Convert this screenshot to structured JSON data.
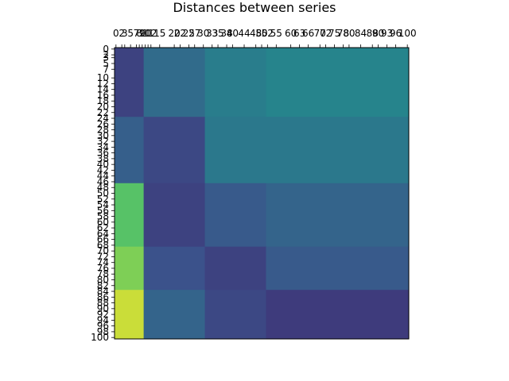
{
  "chart_data": {
    "type": "heatmap",
    "title": "Distances between series",
    "xlabel": "",
    "ylabel": "",
    "colormap": "viridis",
    "grid": false,
    "n_rows": 101,
    "n_cols": 101,
    "x_tick_labels": [
      "0",
      "2",
      "3",
      "5",
      "7",
      "8",
      "9",
      "10",
      "11",
      "12",
      "15",
      "20",
      "22",
      "25",
      "27",
      "30",
      "33",
      "35",
      "38",
      "40",
      "44",
      "48",
      "50",
      "52",
      "55",
      "60",
      "63",
      "66",
      "70",
      "72",
      "75",
      "78",
      "80",
      "84",
      "88",
      "90",
      "93",
      "96",
      "100"
    ],
    "y_tick_labels": [
      "0",
      "2",
      "3",
      "5",
      "7",
      "10",
      "12",
      "14",
      "16",
      "18",
      "20",
      "22",
      "24",
      "26",
      "28",
      "30",
      "32",
      "34",
      "36",
      "38",
      "40",
      "42",
      "44",
      "46",
      "48",
      "50",
      "52",
      "54",
      "56",
      "58",
      "60",
      "62",
      "64",
      "66",
      "68",
      "70",
      "72",
      "74",
      "76",
      "78",
      "80",
      "82",
      "84",
      "86",
      "88",
      "90",
      "92",
      "94",
      "96",
      "98",
      "100"
    ],
    "row_breaks": [
      0,
      24,
      47,
      69,
      84,
      101
    ],
    "col_breaks": [
      0,
      10,
      31,
      52,
      101
    ],
    "block_values": [
      [
        0.2,
        0.35,
        0.42,
        0.45
      ],
      [
        0.3,
        0.22,
        0.4,
        0.4
      ],
      [
        0.72,
        0.2,
        0.28,
        0.32
      ],
      [
        0.8,
        0.25,
        0.2,
        0.28
      ],
      [
        0.92,
        0.32,
        0.22,
        0.18
      ]
    ],
    "value_range": [
      0,
      1
    ]
  }
}
